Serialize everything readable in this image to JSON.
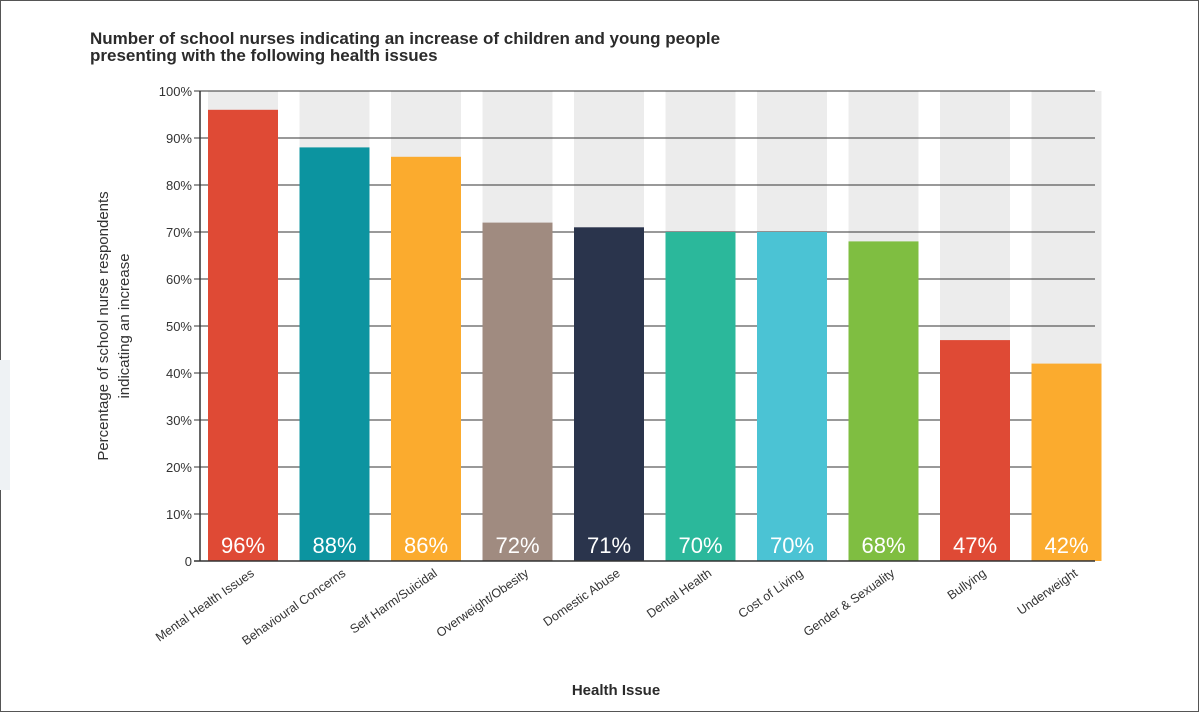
{
  "chart_data": {
    "type": "bar",
    "title_line1": "Number of school nurses indicating an increase of children and young people",
    "title_line2": "presenting with the following health issues",
    "ylabel_line1": "Percentage of school nurse respondents",
    "ylabel_line2": "indicating an increase",
    "xlabel": "Health Issue",
    "ylim": [
      0,
      100
    ],
    "yticks": [
      "0",
      "10%",
      "20%",
      "30%",
      "40%",
      "50%",
      "60%",
      "70%",
      "80%",
      "90%",
      "100%"
    ],
    "grid": true,
    "categories": [
      "Mental Health Issues",
      "Behavioural Concerns",
      "Self Harm/Suicidal",
      "Overweight/Obesity",
      "Domestic Abuse",
      "Dental Health",
      "Cost of Living",
      "Gender & Sexuality",
      "Bullying",
      "Underweight"
    ],
    "values": [
      96,
      88,
      86,
      72,
      71,
      70,
      70,
      68,
      47,
      42
    ],
    "data_labels": [
      "96%",
      "88%",
      "86%",
      "72%",
      "71%",
      "70%",
      "70%",
      "68%",
      "47%",
      "42%"
    ],
    "colors": [
      "#df4a35",
      "#0c94a0",
      "#fbab2e",
      "#a08b80",
      "#2a344c",
      "#2bb89b",
      "#4bc3d4",
      "#7fbe41",
      "#df4a35",
      "#fbab2e"
    ],
    "background_bar_color": "#ececec"
  }
}
